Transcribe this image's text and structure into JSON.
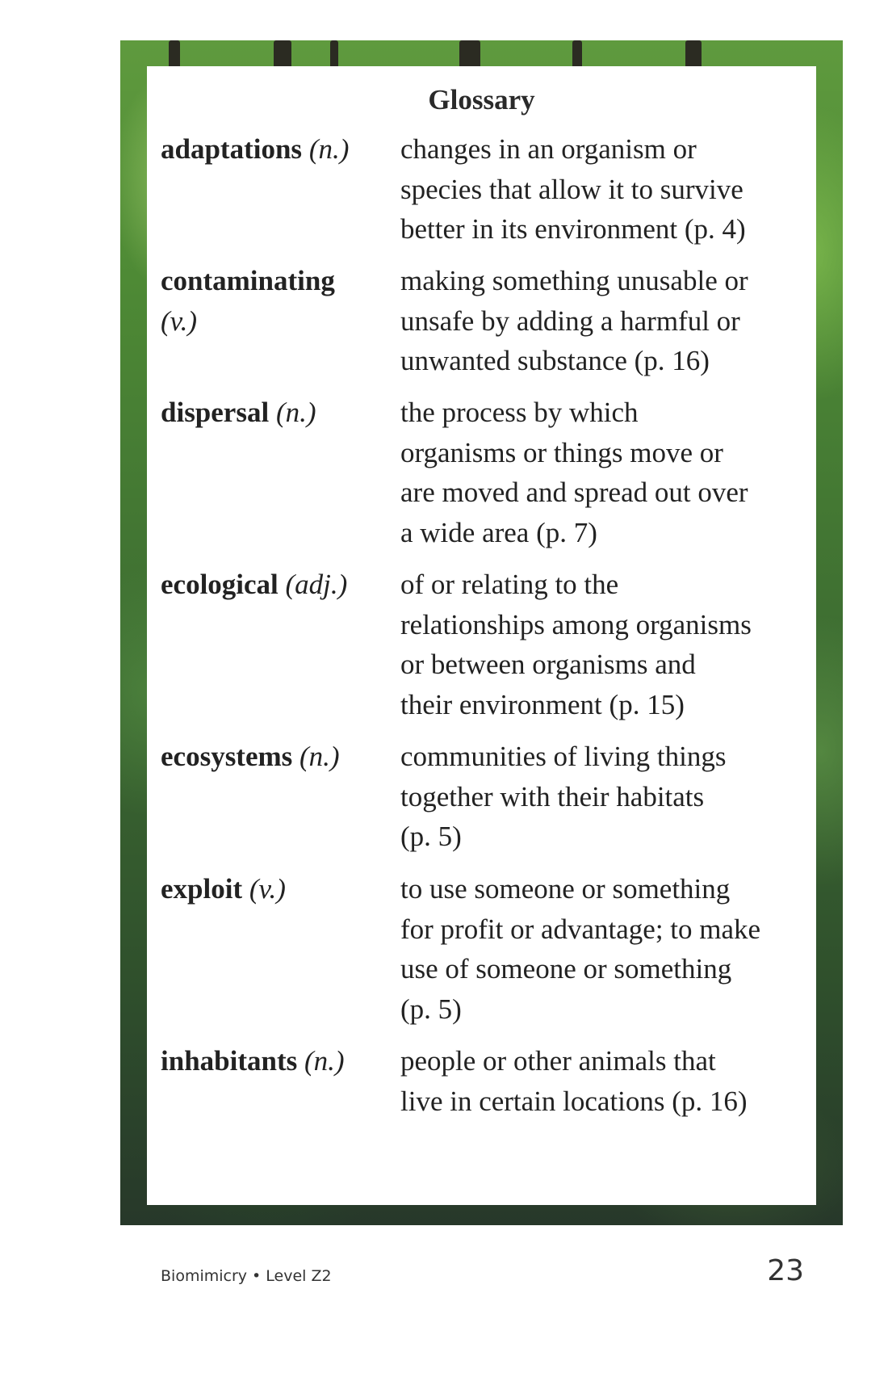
{
  "glossary": {
    "title": "Glossary",
    "entries": [
      {
        "term": "adaptations",
        "pos": "(n.)",
        "definition": "changes in an organism or\nspecies that allow it to survive\nbetter in its environment (p. 4)"
      },
      {
        "term": "contaminating",
        "pos": "(v.)",
        "definition": "making something unusable or\nunsafe by adding a harmful or\nunwanted substance (p. 16)"
      },
      {
        "term": "dispersal",
        "pos": "(n.)",
        "definition": "the process by which\norganisms or things move or\nare moved and spread out over\na wide area (p. 7)"
      },
      {
        "term": "ecological",
        "pos": "(adj.)",
        "definition": "of or relating to the\nrelationships among organisms\nor between organisms and\ntheir environment (p. 15)"
      },
      {
        "term": "ecosystems",
        "pos": "(n.)",
        "definition": "communities of living things\ntogether with their habitats\n(p. 5)"
      },
      {
        "term": "exploit",
        "pos": "(v.)",
        "definition": "to use someone or something\nfor profit or advantage; to make\nuse of someone or something\n(p. 5)"
      },
      {
        "term": "inhabitants",
        "pos": "(n.)",
        "definition": "people or other animals that\nlive in certain locations (p. 16)"
      }
    ]
  },
  "footer": {
    "book_info": "Biomimicry • Level Z2",
    "page_number": "23"
  }
}
